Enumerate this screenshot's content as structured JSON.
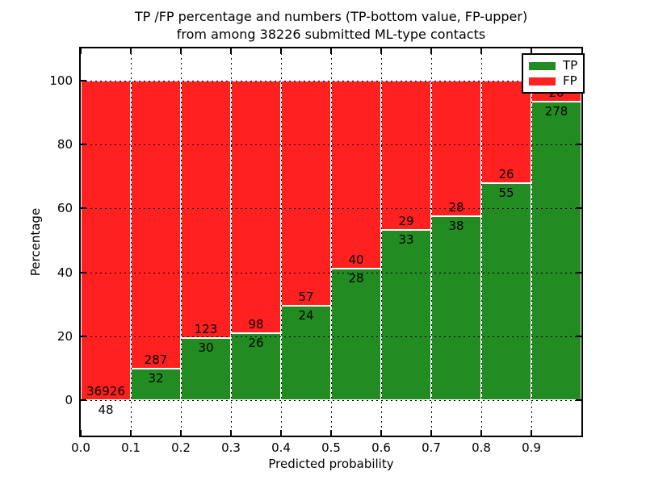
{
  "figure": {
    "title_line1": "TP /FP percentage and numbers (TP-bottom value, FP-upper)",
    "title_line2": "from among 38226 submitted ML-type contacts"
  },
  "chart_data": {
    "type": "bar",
    "subtype": "stacked-percentage",
    "title": "TP /FP percentage and numbers (TP-bottom value, FP-upper) from among 38226 submitted ML-type contacts",
    "xlabel": "Predicted probability",
    "ylabel": "Percentage",
    "total_contacts": 38226,
    "categories": [
      "0.0-0.1",
      "0.1-0.2",
      "0.2-0.3",
      "0.3-0.4",
      "0.4-0.5",
      "0.5-0.6",
      "0.6-0.7",
      "0.7-0.8",
      "0.8-0.9",
      "0.9-1.0"
    ],
    "bin_start": [
      0.0,
      0.1,
      0.2,
      0.3,
      0.4,
      0.5,
      0.6,
      0.7,
      0.8,
      0.9
    ],
    "series": [
      {
        "name": "TP",
        "color": "#228b22",
        "values": [
          48,
          32,
          30,
          26,
          24,
          28,
          33,
          38,
          55,
          278
        ]
      },
      {
        "name": "FP",
        "color": "#ff2020",
        "values": [
          36926,
          287,
          123,
          98,
          57,
          40,
          29,
          28,
          26,
          20
        ]
      }
    ],
    "tp_percent": [
      0.13,
      10.03,
      19.61,
      20.97,
      29.63,
      41.18,
      53.23,
      57.58,
      67.9,
      93.29
    ],
    "label_note": "TP count printed below segment boundary, FP count printed above it",
    "xtick_labels": [
      "0.0",
      "0.1",
      "0.2",
      "0.3",
      "0.4",
      "0.5",
      "0.6",
      "0.7",
      "0.8",
      "0.9"
    ],
    "xtick_values": [
      0.0,
      0.1,
      0.2,
      0.3,
      0.4,
      0.5,
      0.6,
      0.7,
      0.8,
      0.9
    ],
    "ytick_labels": [
      "0",
      "20",
      "40",
      "60",
      "80",
      "100"
    ],
    "ytick_values": [
      0,
      20,
      40,
      60,
      80,
      100
    ],
    "xlim": [
      0.0,
      1.0
    ],
    "ylim": [
      -11,
      110
    ],
    "grid": "dotted black, drawn over bars",
    "bar_edge_color": "#ffffff",
    "legend": {
      "position": "upper right",
      "entries": [
        "TP",
        "FP"
      ]
    }
  }
}
